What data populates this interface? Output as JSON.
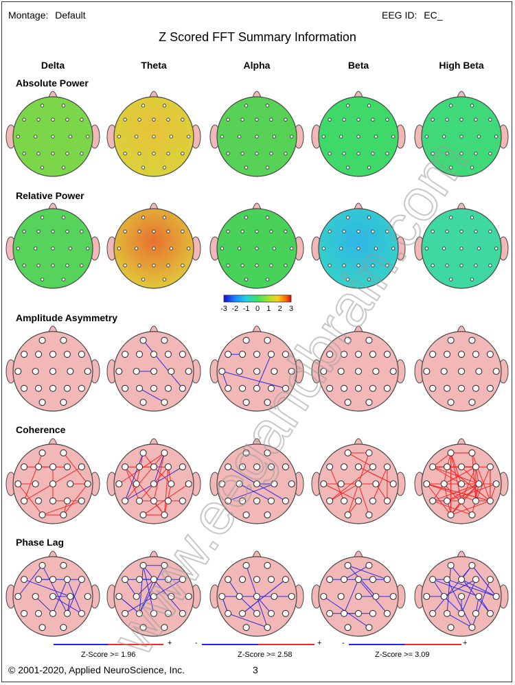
{
  "header": {
    "montage_label": "Montage:",
    "montage_value": "Default",
    "eeg_label": "EEG ID:",
    "eeg_value": "EC_",
    "title": "Z Scored FFT Summary Information"
  },
  "bands": [
    "Delta",
    "Theta",
    "Alpha",
    "Beta",
    "High Beta"
  ],
  "sections": {
    "absolute_power": "Absolute Power",
    "relative_power": "Relative Power",
    "amplitude_asymmetry": "Amplitude Asymmetry",
    "coherence": "Coherence",
    "phase_lag": "Phase Lag"
  },
  "color_scale": {
    "ticks": [
      "-3",
      "-2",
      "-1",
      "0",
      "1",
      "2",
      "3"
    ],
    "colors": [
      "#1010d0",
      "#1a8cff",
      "#21d4e0",
      "#3fe060",
      "#a6e22e",
      "#f5d020",
      "#ff6a00",
      "#d01010"
    ]
  },
  "zscore_legends": [
    {
      "minus": "",
      "plus": "+",
      "label": "Z-Score >= 1.96"
    },
    {
      "minus": "-",
      "plus": "+",
      "label": "Z-Score >= 2.58"
    },
    {
      "minus": "-",
      "plus": "+",
      "label": "Z-Score >= 3.09"
    }
  ],
  "footer": {
    "copyright": "© 2001-2020, Applied NeuroScience, Inc.",
    "page_number": "3"
  },
  "watermark": "www.eegandbrain.com"
}
